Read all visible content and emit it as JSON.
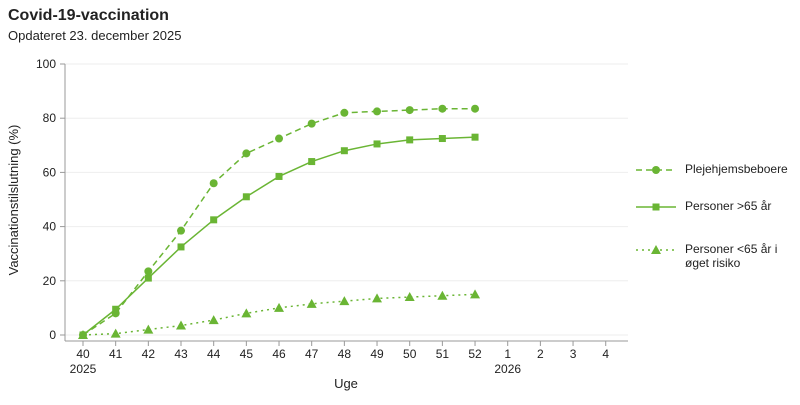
{
  "chart_data": {
    "type": "line",
    "title": "Covid-19-vaccination",
    "subtitle": "Opdateret 23. december 2025",
    "x_label": "Uge",
    "y_label": "Vaccinationstilslutning (%)",
    "categories": [
      "40",
      "41",
      "42",
      "43",
      "44",
      "45",
      "46",
      "47",
      "48",
      "49",
      "50",
      "51",
      "52",
      "1",
      "2",
      "3",
      "4"
    ],
    "category_years": [
      "2025",
      null,
      null,
      null,
      null,
      null,
      null,
      null,
      null,
      null,
      null,
      null,
      null,
      "2026",
      null,
      null,
      null
    ],
    "series": [
      {
        "name": "Plejehjemsbeboere",
        "color": "#6ab534",
        "dash": "dashed",
        "marker": "circle",
        "values": [
          0,
          8,
          23.5,
          38.5,
          56,
          67,
          72.5,
          78,
          82,
          82.5,
          83,
          83.5,
          83.5,
          null,
          null,
          null,
          null
        ]
      },
      {
        "name": "Personer >65 år",
        "color": "#6ab534",
        "dash": "solid",
        "marker": "square",
        "values": [
          0,
          9.5,
          21,
          32.5,
          42.5,
          51,
          58.5,
          64,
          68,
          70.5,
          72,
          72.5,
          73,
          null,
          null,
          null,
          null
        ]
      },
      {
        "name": "Personer <65 år i øget risiko",
        "color": "#6ab534",
        "dash": "dotted",
        "marker": "triangle",
        "values": [
          0,
          0.5,
          2,
          3.5,
          5.5,
          8,
          10,
          11.5,
          12.5,
          13.5,
          14,
          14.5,
          15,
          null,
          null,
          null,
          null
        ]
      }
    ],
    "ylim": [
      0,
      100
    ],
    "yticks": [
      0,
      20,
      40,
      60,
      80,
      100
    ],
    "grid": true,
    "legend": "right"
  }
}
